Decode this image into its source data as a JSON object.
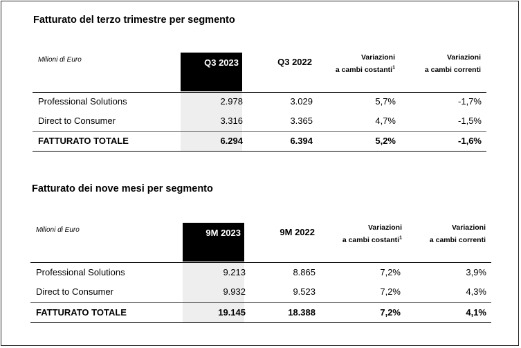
{
  "tables": [
    {
      "title": "Fatturato del terzo trimestre per segmento",
      "unit_label": "Milioni di Euro",
      "columns": {
        "current": "Q3 2023",
        "previous": "Q3 2022",
        "var_const_line1": "Variazioni",
        "var_const_line2": "a cambi costanti",
        "var_const_sup": "1",
        "var_curr_line1": "Variazioni",
        "var_curr_line2": "a cambi correnti"
      },
      "rows": [
        {
          "label": "Professional Solutions",
          "current": "2.978",
          "previous": "3.029",
          "var_const": "5,7%",
          "var_curr": "-1,7%"
        },
        {
          "label": "Direct to Consumer",
          "current": "3.316",
          "previous": "3.365",
          "var_const": "4,7%",
          "var_curr": "-1,5%"
        },
        {
          "label": "FATTURATO TOTALE",
          "current": "6.294",
          "previous": "6.394",
          "var_const": "5,2%",
          "var_curr": "-1,6%"
        }
      ]
    },
    {
      "title": "Fatturato dei nove mesi per segmento",
      "unit_label": "Milioni di Euro",
      "columns": {
        "current": "9M 2023",
        "previous": "9M 2022",
        "var_const_line1": "Variazioni",
        "var_const_line2": "a cambi costanti",
        "var_const_sup": "1",
        "var_curr_line1": "Variazioni",
        "var_curr_line2": "a cambi correnti"
      },
      "rows": [
        {
          "label": "Professional Solutions",
          "current": "9.213",
          "previous": "8.865",
          "var_const": "7,2%",
          "var_curr": "3,9%"
        },
        {
          "label": "Direct to Consumer",
          "current": "9.932",
          "previous": "9.523",
          "var_const": "7,2%",
          "var_curr": "4,3%"
        },
        {
          "label": "FATTURATO TOTALE",
          "current": "19.145",
          "previous": "18.388",
          "var_const": "7,2%",
          "var_curr": "4,1%"
        }
      ]
    }
  ]
}
